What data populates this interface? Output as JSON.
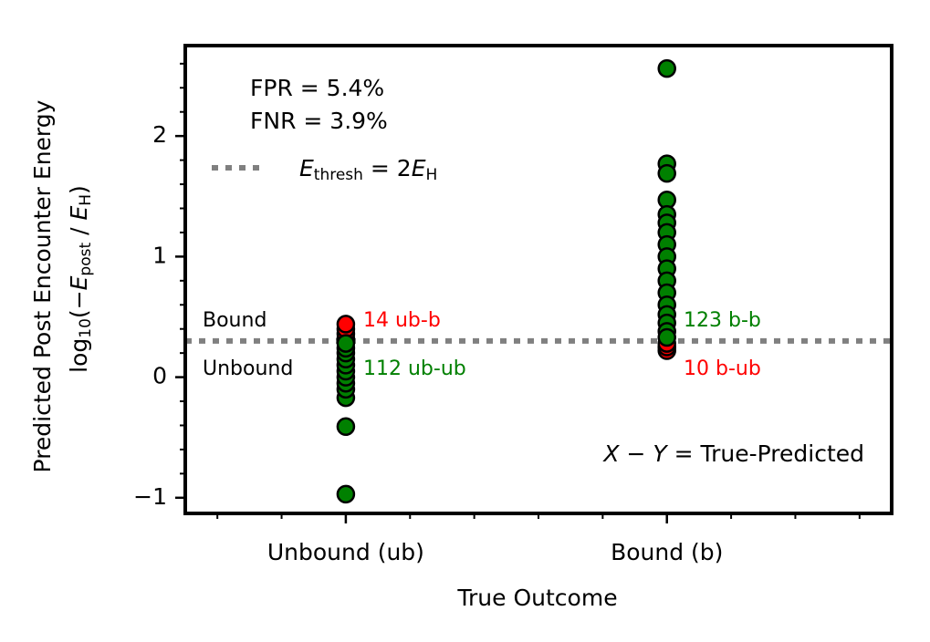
{
  "chart_data": {
    "type": "scatter",
    "xlabel": "True Outcome",
    "ylabel": "Predicted Post Encounter Energy",
    "ylabel2": [
      "log",
      "10",
      "(−",
      "E",
      "post",
      " / ",
      "E",
      "H",
      ")"
    ],
    "xlim": [
      -0.5,
      1.7
    ],
    "xticks": [
      {
        "value": 0,
        "label": "Unbound (ub)"
      },
      {
        "value": 1,
        "label": "Bound (b)"
      }
    ],
    "xminorticks": [
      -0.4,
      -0.2,
      0.2,
      0.4,
      0.6,
      0.8,
      1.2,
      1.4,
      1.6
    ],
    "ylim": [
      -1.13,
      2.75
    ],
    "yticks": [
      {
        "value": -1,
        "label": "−1"
      },
      0,
      1,
      2
    ],
    "yminorticks": [
      -0.8,
      -0.6,
      -0.4,
      -0.2,
      0.2,
      0.4,
      0.6,
      0.8,
      1.2,
      1.4,
      1.6,
      1.8,
      2.2,
      2.4,
      2.6
    ],
    "threshold": {
      "value": 0.3,
      "color": "#808080",
      "label": [
        "E",
        "thresh",
        " = 2",
        "E",
        "H"
      ]
    },
    "series": [
      {
        "color": "#ff0000",
        "x": [
          0,
          0,
          0,
          0
        ],
        "values": [
          0.32,
          0.36,
          0.4,
          0.44
        ]
      },
      {
        "color": "#008000",
        "x": [
          0,
          0,
          0,
          0,
          0,
          0,
          0,
          0,
          0,
          0,
          0,
          0
        ],
        "values": [
          -0.97,
          -0.41,
          -0.17,
          -0.1,
          -0.05,
          0,
          0.05,
          0.1,
          0.15,
          0.2,
          0.24,
          0.28
        ]
      },
      {
        "color": "#ff0000",
        "x": [
          1,
          1,
          1
        ],
        "values": [
          0.22,
          0.25,
          0.28
        ]
      },
      {
        "color": "#008000",
        "x": [
          1,
          1,
          1,
          1,
          1,
          1,
          1,
          1,
          1,
          1,
          1,
          1,
          1,
          1,
          1,
          1,
          1
        ],
        "values": [
          2.56,
          1.77,
          1.69,
          1.47,
          1.35,
          1.28,
          1.2,
          1.1,
          1.0,
          0.9,
          0.8,
          0.7,
          0.6,
          0.52,
          0.45,
          0.38,
          0.33
        ]
      }
    ],
    "stats": [
      "FPR = 5.4%",
      "FNR = 3.9%"
    ],
    "region_labels": [
      "Bound",
      "Unbound"
    ],
    "annotations": [
      {
        "text": "14 ub-b",
        "color": "#ff0000"
      },
      {
        "text": "112 ub-ub",
        "color": "#008000"
      },
      {
        "text": "123 b-b",
        "color": "#008000"
      },
      {
        "text": "10 b-ub",
        "color": "#ff0000"
      }
    ],
    "note": [
      "X − Y = ",
      " True-Predicted"
    ]
  }
}
